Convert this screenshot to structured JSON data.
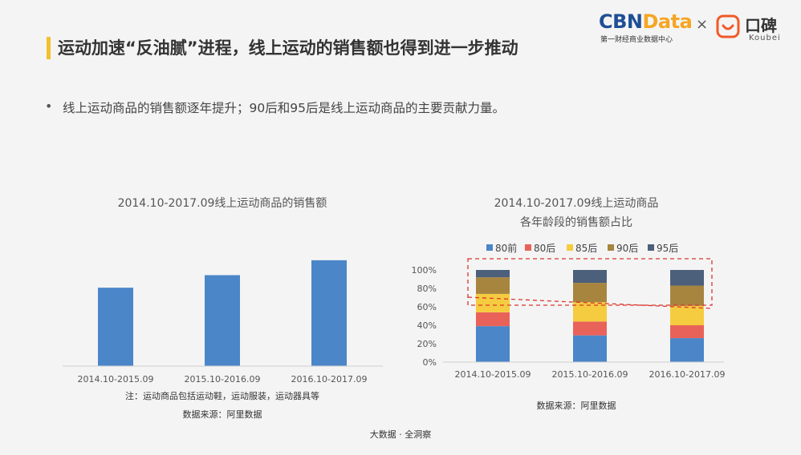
{
  "header": {
    "title": "运动加速“反油腻”进程，线上运动的销售额也得到进一步推动",
    "logo_cbn": "CBN",
    "logo_data": "Data",
    "logo_sub": "第一财经商业数据中心",
    "times": "×",
    "koubei_text": "口碑",
    "koubei_sub": "Koubei"
  },
  "bullet": {
    "dot": "•",
    "text": "线上运动商品的销售额逐年提升；90后和95后是线上运动商品的主要贡献力量。"
  },
  "colors": {
    "accent": "#f2c12e",
    "bar": "#4a86c8",
    "s80qian": "#4a86c8",
    "s80hou": "#e9625a",
    "s85hou": "#f5cc3f",
    "s90hou": "#a7853f",
    "s95hou": "#4c5f7b",
    "dashed_red": "#d9362b"
  },
  "chart_data": [
    {
      "type": "bar",
      "title": "2014.10-2017.09线上运动商品的销售额",
      "categories": [
        "2014.10-2015.09",
        "2015.10-2016.09",
        "2016.10-2017.09"
      ],
      "values": [
        100,
        116,
        135
      ],
      "ylim": [
        0,
        140
      ],
      "grid": false,
      "legend": "none"
    },
    {
      "type": "bar",
      "stacked": true,
      "title": [
        "2014.10-2017.09线上运动商品",
        "各年龄段的销售额占比"
      ],
      "categories": [
        "2014.10-2015.09",
        "2015.10-2016.09",
        "2016.10-2017.09"
      ],
      "y_ticks": [
        "0%",
        "20%",
        "40%",
        "60%",
        "80%",
        "100%"
      ],
      "ylim": [
        0,
        100
      ],
      "series": [
        {
          "name": "80前",
          "values": [
            39,
            29,
            26
          ]
        },
        {
          "name": "80后",
          "values": [
            15,
            15,
            14
          ]
        },
        {
          "name": "85后",
          "values": [
            20,
            21,
            21
          ]
        },
        {
          "name": "90后",
          "values": [
            18,
            21,
            22
          ]
        },
        {
          "name": "95后",
          "values": [
            8,
            14,
            17
          ]
        }
      ],
      "legend": "top"
    }
  ],
  "notes": {
    "left_note": "注：运动商品包括运动鞋，运动服装，运动器具等",
    "left_source": "数据来源：阿里数据",
    "right_source": "数据来源：阿里数据",
    "footer": "大数据 · 全洞察"
  }
}
